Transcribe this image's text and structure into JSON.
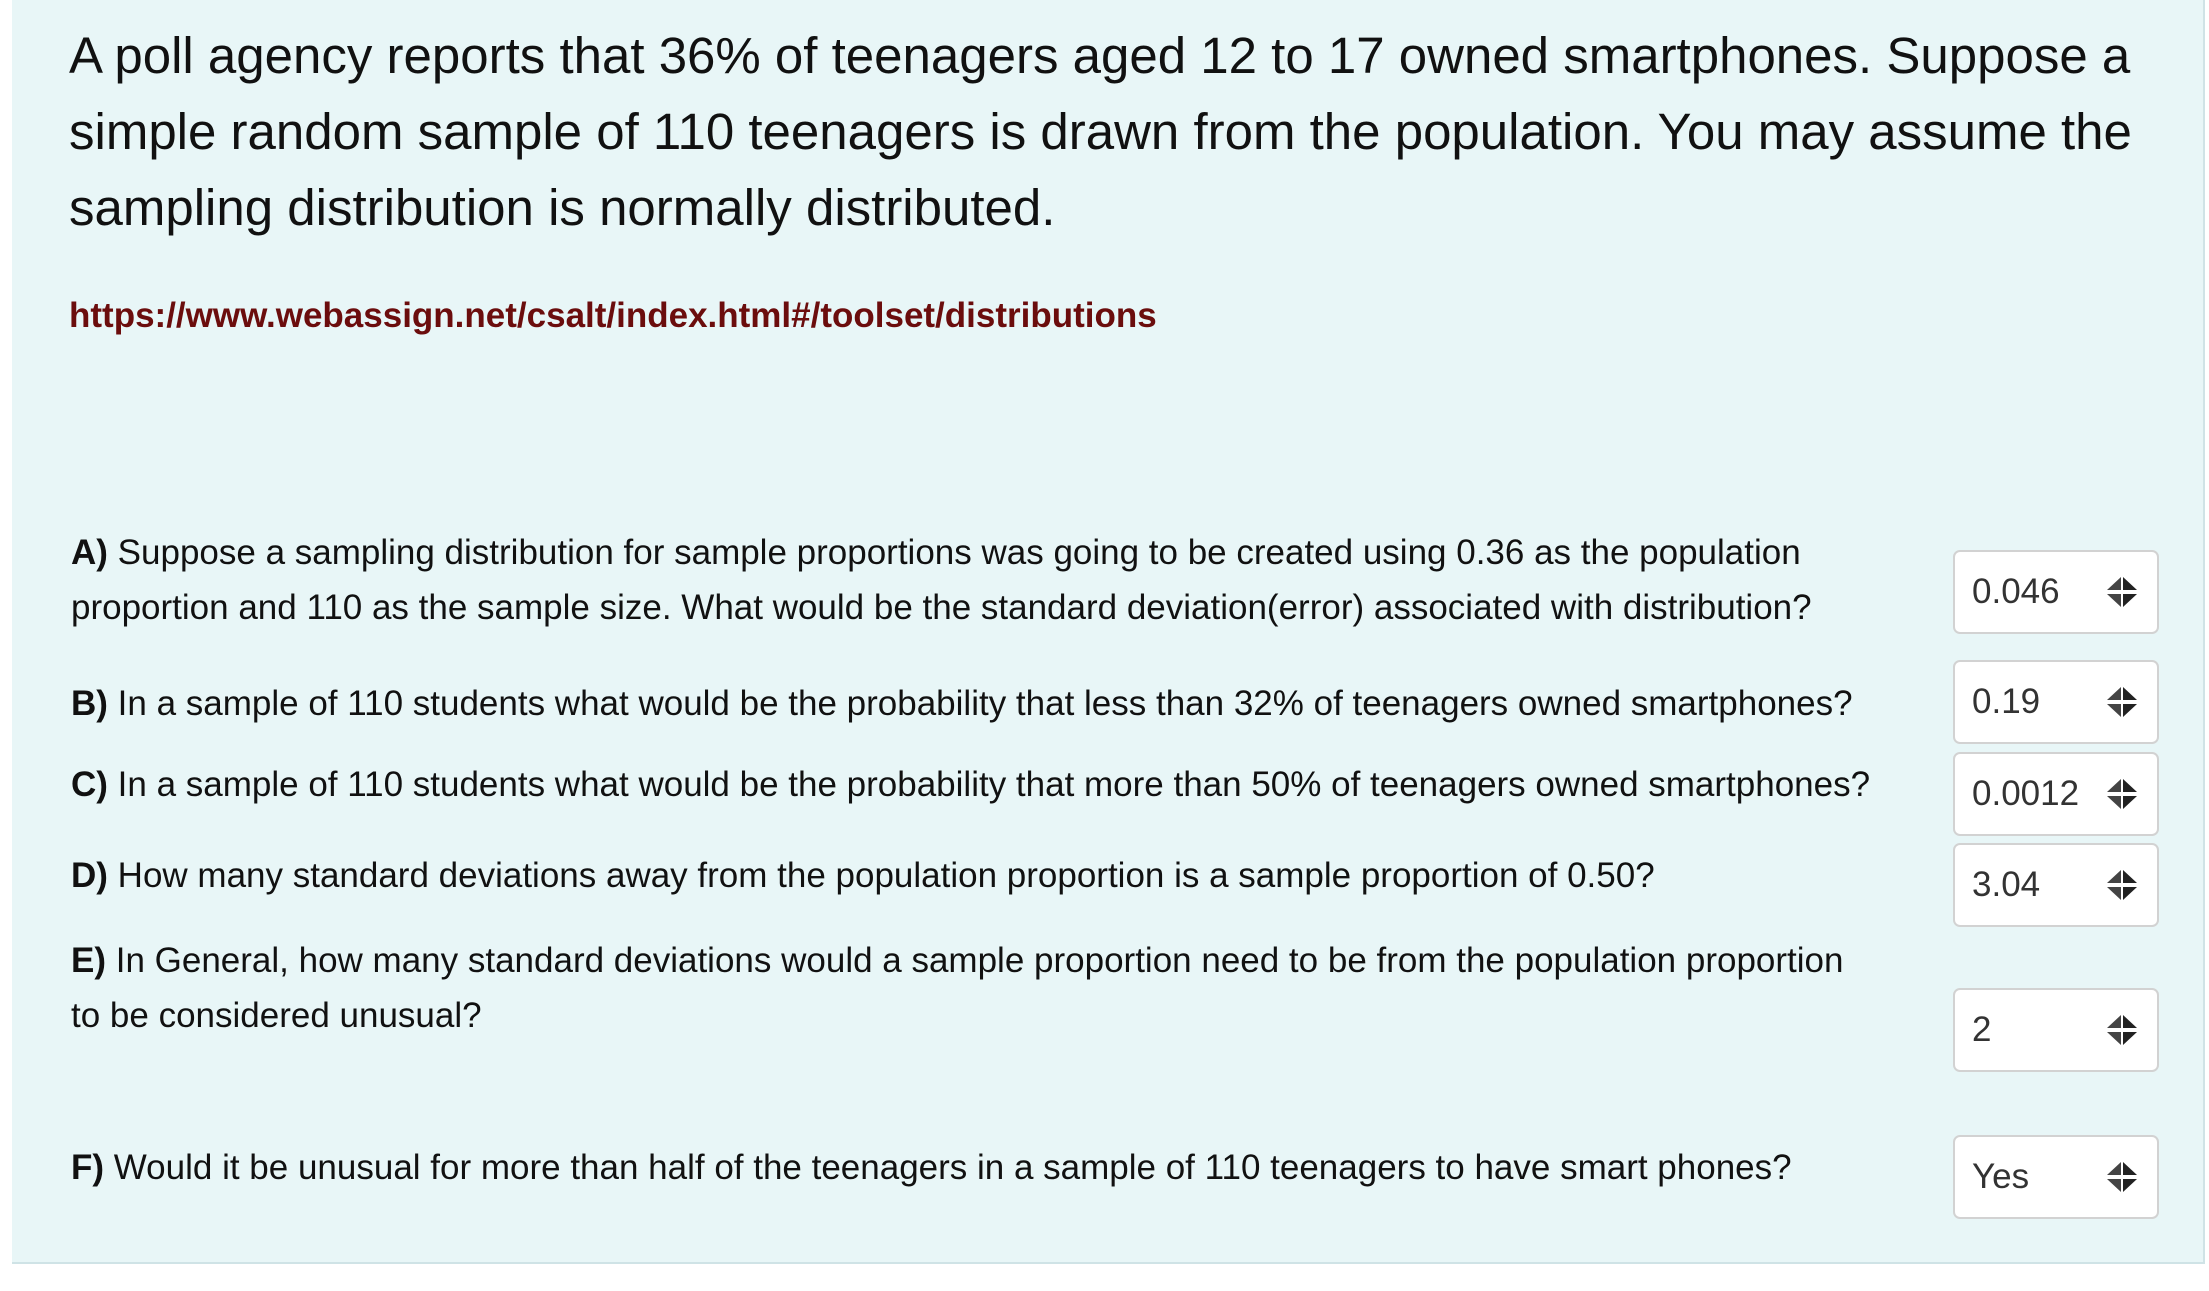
{
  "intro": "A poll agency reports that 36% of teenagers aged 12 to 17 owned smartphones.  Suppose a simple random sample of 110 teenagers is drawn from the population. You may assume the sampling distribution is normally distributed.",
  "link": "https://www.webassign.net/csalt/index.html#/toolset/distributions",
  "questions": [
    {
      "letter": "A)",
      "text": "Suppose a sampling distribution for sample proportions was going to be created using 0.36 as the population",
      "text2": "proportion and 110 as the sample size.  What would be the standard deviation(error) associated with distribution?",
      "answer": "0.046"
    },
    {
      "letter": "B)",
      "text": "In a sample of 110 students what would be the probability that less than 32% of teenagers owned smartphones?",
      "answer": "0.19"
    },
    {
      "letter": "C)",
      "text": "In a sample of 110 students what would be the probability that more than 50% of teenagers owned smartphones?",
      "answer": "0.0012"
    },
    {
      "letter": "D)",
      "text": "How many standard deviations away from the population proportion is a sample proportion of 0.50?",
      "answer": "3.04"
    },
    {
      "letter": "E)",
      "text": "In General, how many standard deviations would a sample proportion need to be from the population proportion",
      "text2": "to be considered unusual?",
      "answer": "2"
    },
    {
      "letter": "F)",
      "text": "Would it be unusual for more than half of the teenagers in a sample of 110 teenagers to have smart phones?",
      "answer": "Yes"
    }
  ],
  "icons": {
    "select_arrows": "up-down-arrows-icon"
  },
  "colors": {
    "panel_background": "#e8f6f7",
    "link": "#6b0d0d",
    "answer_border": "#d2d2d2"
  }
}
